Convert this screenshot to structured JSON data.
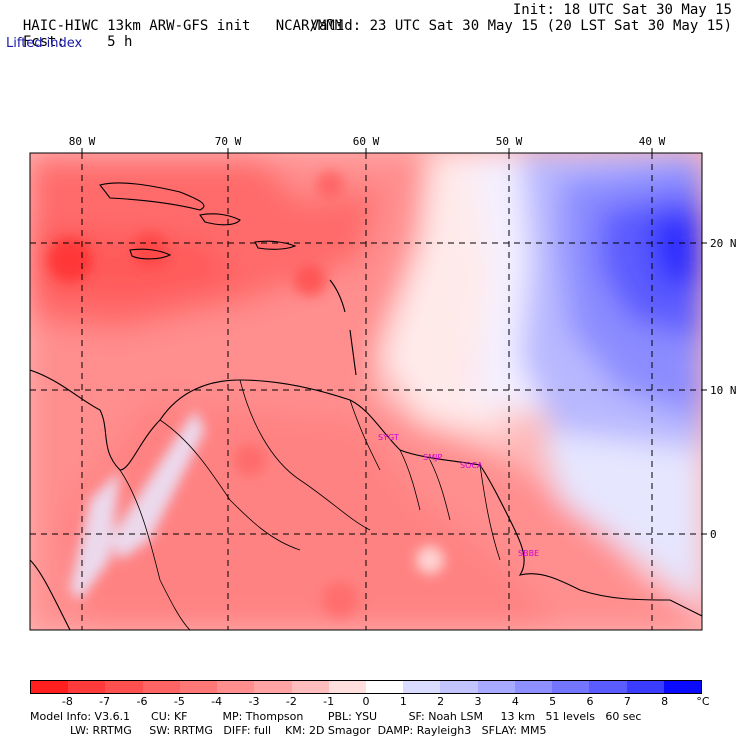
{
  "header": {
    "model_title": "HAIC-HIWC 13km ARW-GFS init",
    "org": "NCAR/MMM",
    "init": "Init: 18 UTC Sat 30 May 15",
    "fcst_label": "Fcst:",
    "fcst_value": "5 h",
    "valid": "Valid: 23 UTC Sat 30 May 15 (20 LST Sat 30 May 15)",
    "field": "Lifted index"
  },
  "map": {
    "lon_labels": [
      "80 W",
      "70 W",
      "60 W",
      "50 W",
      "40 W"
    ],
    "lat_labels": [
      "20 N",
      "10 N",
      "0"
    ],
    "stations": [
      "SYGT",
      "SMJP",
      "SOCA",
      "SBBE"
    ],
    "station_color": "#d400d4"
  },
  "colorbar": {
    "labels": [
      "-8",
      "-7",
      "-6",
      "-5",
      "-4",
      "-3",
      "-2",
      "-1",
      "0",
      "1",
      "2",
      "3",
      "4",
      "5",
      "6",
      "7",
      "8"
    ],
    "unit": "°C",
    "colors": [
      "#ff1f1f",
      "#ff3a3a",
      "#ff5050",
      "#ff6464",
      "#ff7878",
      "#ff8e8e",
      "#ffa4a4",
      "#ffbdbd",
      "#ffdede",
      "#ffffff",
      "#dadcff",
      "#c2c4ff",
      "#a8aaff",
      "#8e90ff",
      "#7476ff",
      "#5a5cff",
      "#3a3cff",
      "#0a0aff"
    ]
  },
  "footer": {
    "line1": "Model Info: V3.6.1      CU: KF          MP: Thompson       PBL: YSU         SF: Noah LSM     13 km   51 levels   60 sec",
    "line2": "LW: RRTMG     SW: RRTMG   DIFF: full    KM: 2D Smagor  DAMP: Rayleigh3   SFLAY: MM5"
  }
}
